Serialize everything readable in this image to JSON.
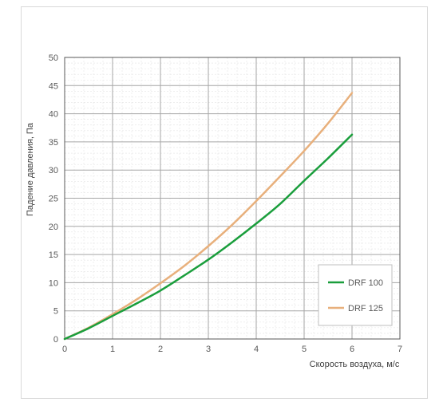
{
  "chart_data": {
    "type": "line",
    "title": "",
    "xlabel": "Скорость воздуха, м/с",
    "ylabel": "Падение давления, Па",
    "xlim": [
      0,
      7
    ],
    "ylim": [
      0,
      50
    ],
    "x_ticks": [
      "0",
      "1",
      "2",
      "3",
      "4",
      "5",
      "6",
      "7"
    ],
    "y_ticks": [
      "0",
      "5",
      "10",
      "15",
      "20",
      "25",
      "30",
      "35",
      "40",
      "45",
      "50"
    ],
    "grid_major": true,
    "grid_minor": true,
    "legend_position": "bottom-right",
    "series": [
      {
        "name": "DRF 100",
        "color": "#1a9e3c",
        "x": [
          0,
          0.5,
          1,
          1.5,
          2,
          2.5,
          3,
          3.5,
          4,
          4.5,
          5,
          5.5,
          6
        ],
        "y": [
          0,
          1.9,
          4.1,
          6.3,
          8.6,
          11.3,
          14.1,
          17.2,
          20.5,
          24.0,
          28.1,
          32.1,
          36.3
        ]
      },
      {
        "name": "DRF 125",
        "color": "#e8b07c",
        "x": [
          0,
          0.5,
          1,
          1.5,
          2,
          2.5,
          3,
          3.5,
          4,
          4.5,
          5,
          5.5,
          6
        ],
        "y": [
          0,
          2.0,
          4.4,
          7.0,
          9.9,
          13.0,
          16.5,
          20.3,
          24.5,
          28.9,
          33.4,
          38.3,
          43.7
        ]
      }
    ]
  }
}
